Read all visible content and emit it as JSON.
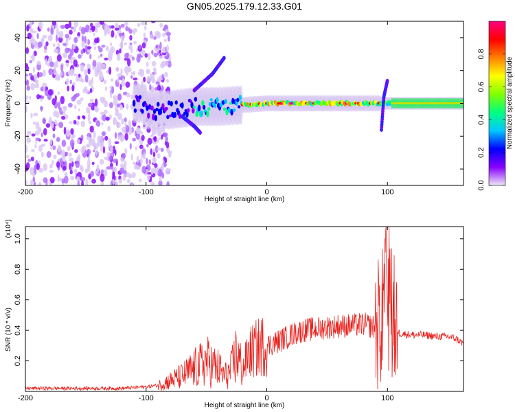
{
  "title": "GN05.2025.179.12.33.G01",
  "chart_data": [
    {
      "type": "heatmap",
      "xlabel": "Height of straight line (km)",
      "ylabel": "Frequency (Hz)",
      "xlim": [
        -200,
        163
      ],
      "ylim": [
        -50,
        50
      ],
      "x_ticks": [
        -200,
        -100,
        0,
        100
      ],
      "y_ticks": [
        -40,
        -20,
        0,
        20,
        40
      ],
      "colorbar": {
        "label": "Normalized spectral amplitude",
        "range": [
          0,
          1
        ],
        "ticks": [
          "0.0",
          "0.2",
          "0.4",
          "0.6",
          "0.8"
        ],
        "colormap": [
          "#f0e8f8",
          "#8800ff",
          "#0000ff",
          "#00c8ff",
          "#00ff80",
          "#80ff00",
          "#ffff00",
          "#ff8000",
          "#ff0000",
          "#ff0080"
        ]
      },
      "ridge": [
        {
          "x": -100,
          "y": -4
        },
        {
          "x": -80,
          "y": -4
        },
        {
          "x": -60,
          "y": -2
        },
        {
          "x": -40,
          "y": -2
        },
        {
          "x": -20,
          "y": -1
        },
        {
          "x": 0,
          "y": 0
        },
        {
          "x": 20,
          "y": 0
        },
        {
          "x": 50,
          "y": 0
        },
        {
          "x": 80,
          "y": 0
        },
        {
          "x": 100,
          "y": 0
        },
        {
          "x": 163,
          "y": 0
        }
      ],
      "branches": [
        {
          "x": [
            -60,
            -45,
            -35
          ],
          "y": [
            8,
            18,
            28
          ]
        },
        {
          "x": [
            -70,
            -60,
            -55
          ],
          "y": [
            -8,
            -14,
            -18
          ]
        },
        {
          "x": [
            95,
            97,
            100
          ],
          "y": [
            -16,
            4,
            14
          ]
        }
      ]
    },
    {
      "type": "line",
      "xlabel": "Height of straight line (km)",
      "ylabel": "SNR (10 * v/v)",
      "y_multiplier": "(x10⁴)",
      "xlim": [
        -200,
        163
      ],
      "ylim": [
        0,
        1.08
      ],
      "x_ticks": [
        -200,
        -100,
        0,
        100
      ],
      "y_ticks": [
        "0.2",
        "0.4",
        "0.6",
        "0.8",
        "1.0"
      ],
      "color": "#e8221e",
      "series": [
        {
          "x": [
            -200,
            -180,
            -150,
            -120,
            -100,
            -90,
            -80,
            -70,
            -60,
            -55,
            -50,
            -45,
            -40,
            -35,
            -30,
            -25,
            -20,
            -15,
            -10,
            -5,
            0,
            10,
            20,
            30,
            40,
            50,
            60,
            70,
            80,
            85,
            90,
            93,
            96,
            98,
            100,
            102,
            104,
            106,
            108,
            110,
            120,
            130,
            140,
            150,
            155,
            160,
            163
          ],
          "y": [
            0.02,
            0.02,
            0.02,
            0.02,
            0.03,
            0.04,
            0.07,
            0.1,
            0.15,
            0.17,
            0.2,
            0.17,
            0.15,
            0.1,
            0.13,
            0.25,
            0.14,
            0.25,
            0.27,
            0.3,
            0.3,
            0.33,
            0.37,
            0.4,
            0.41,
            0.42,
            0.43,
            0.43,
            0.44,
            0.43,
            0.42,
            0.45,
            0.5,
            0.6,
            0.85,
            0.75,
            0.5,
            0.45,
            0.4,
            0.38,
            0.37,
            0.37,
            0.36,
            0.36,
            0.35,
            0.33,
            0.31
          ]
        }
      ]
    }
  ]
}
